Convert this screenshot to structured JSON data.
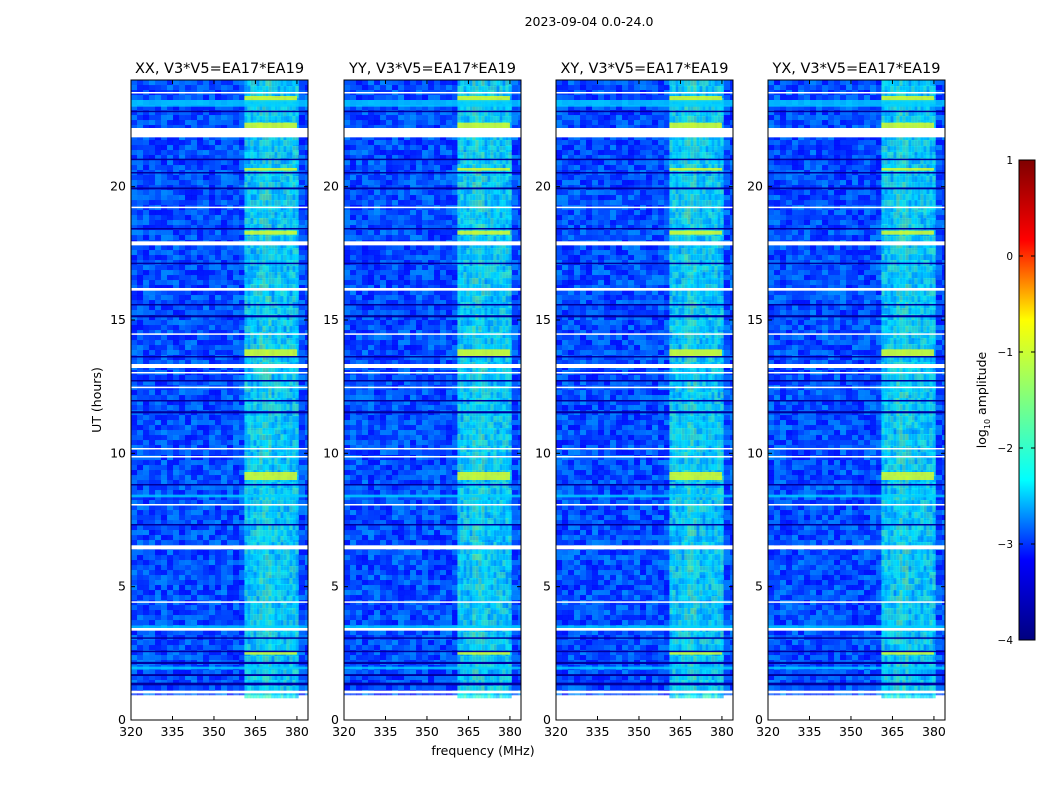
{
  "chart_data": {
    "type": "heatmap",
    "suptitle": "2023-09-04 0.0-24.0",
    "xlabel": "frequency (MHz)",
    "ylabel": "UT (hours)",
    "xlim": [
      320,
      384
    ],
    "ylim": [
      0,
      24
    ],
    "xticks": [
      "320",
      "335",
      "350",
      "365",
      "380"
    ],
    "yticks": [
      "0",
      "5",
      "10",
      "15",
      "20"
    ],
    "xtick_values": [
      320,
      335,
      350,
      365,
      380
    ],
    "ytick_values": [
      0,
      5,
      10,
      15,
      20
    ],
    "data_ut_range": [
      1.0,
      24.0
    ],
    "rfi_band_mhz": [
      361,
      380
    ],
    "panels": [
      {
        "title": "XX, V3*V5=EA17*EA19",
        "pol": "XX"
      },
      {
        "title": "YY, V3*V5=EA17*EA19",
        "pol": "YY"
      },
      {
        "title": "XY, V3*V5=EA17*EA19",
        "pol": "XY"
      },
      {
        "title": "YX, V3*V5=EA17*EA19",
        "pol": "YX"
      }
    ],
    "colorbar": {
      "label": "log10 amplitude",
      "label_base": "log",
      "label_sub": "10",
      "label_rest": " amplitude",
      "range": [
        -4,
        1
      ],
      "tick_values": [
        1,
        0,
        -1,
        -2,
        -3,
        -4
      ],
      "ticks": [
        "1",
        "0",
        "−1",
        "−2",
        "−3",
        "−4"
      ],
      "colormap": "jet",
      "colors": [
        "#00007f",
        "#0000ff",
        "#00ffff",
        "#7fff7f",
        "#ffff00",
        "#ff0000",
        "#7f0000"
      ]
    }
  }
}
